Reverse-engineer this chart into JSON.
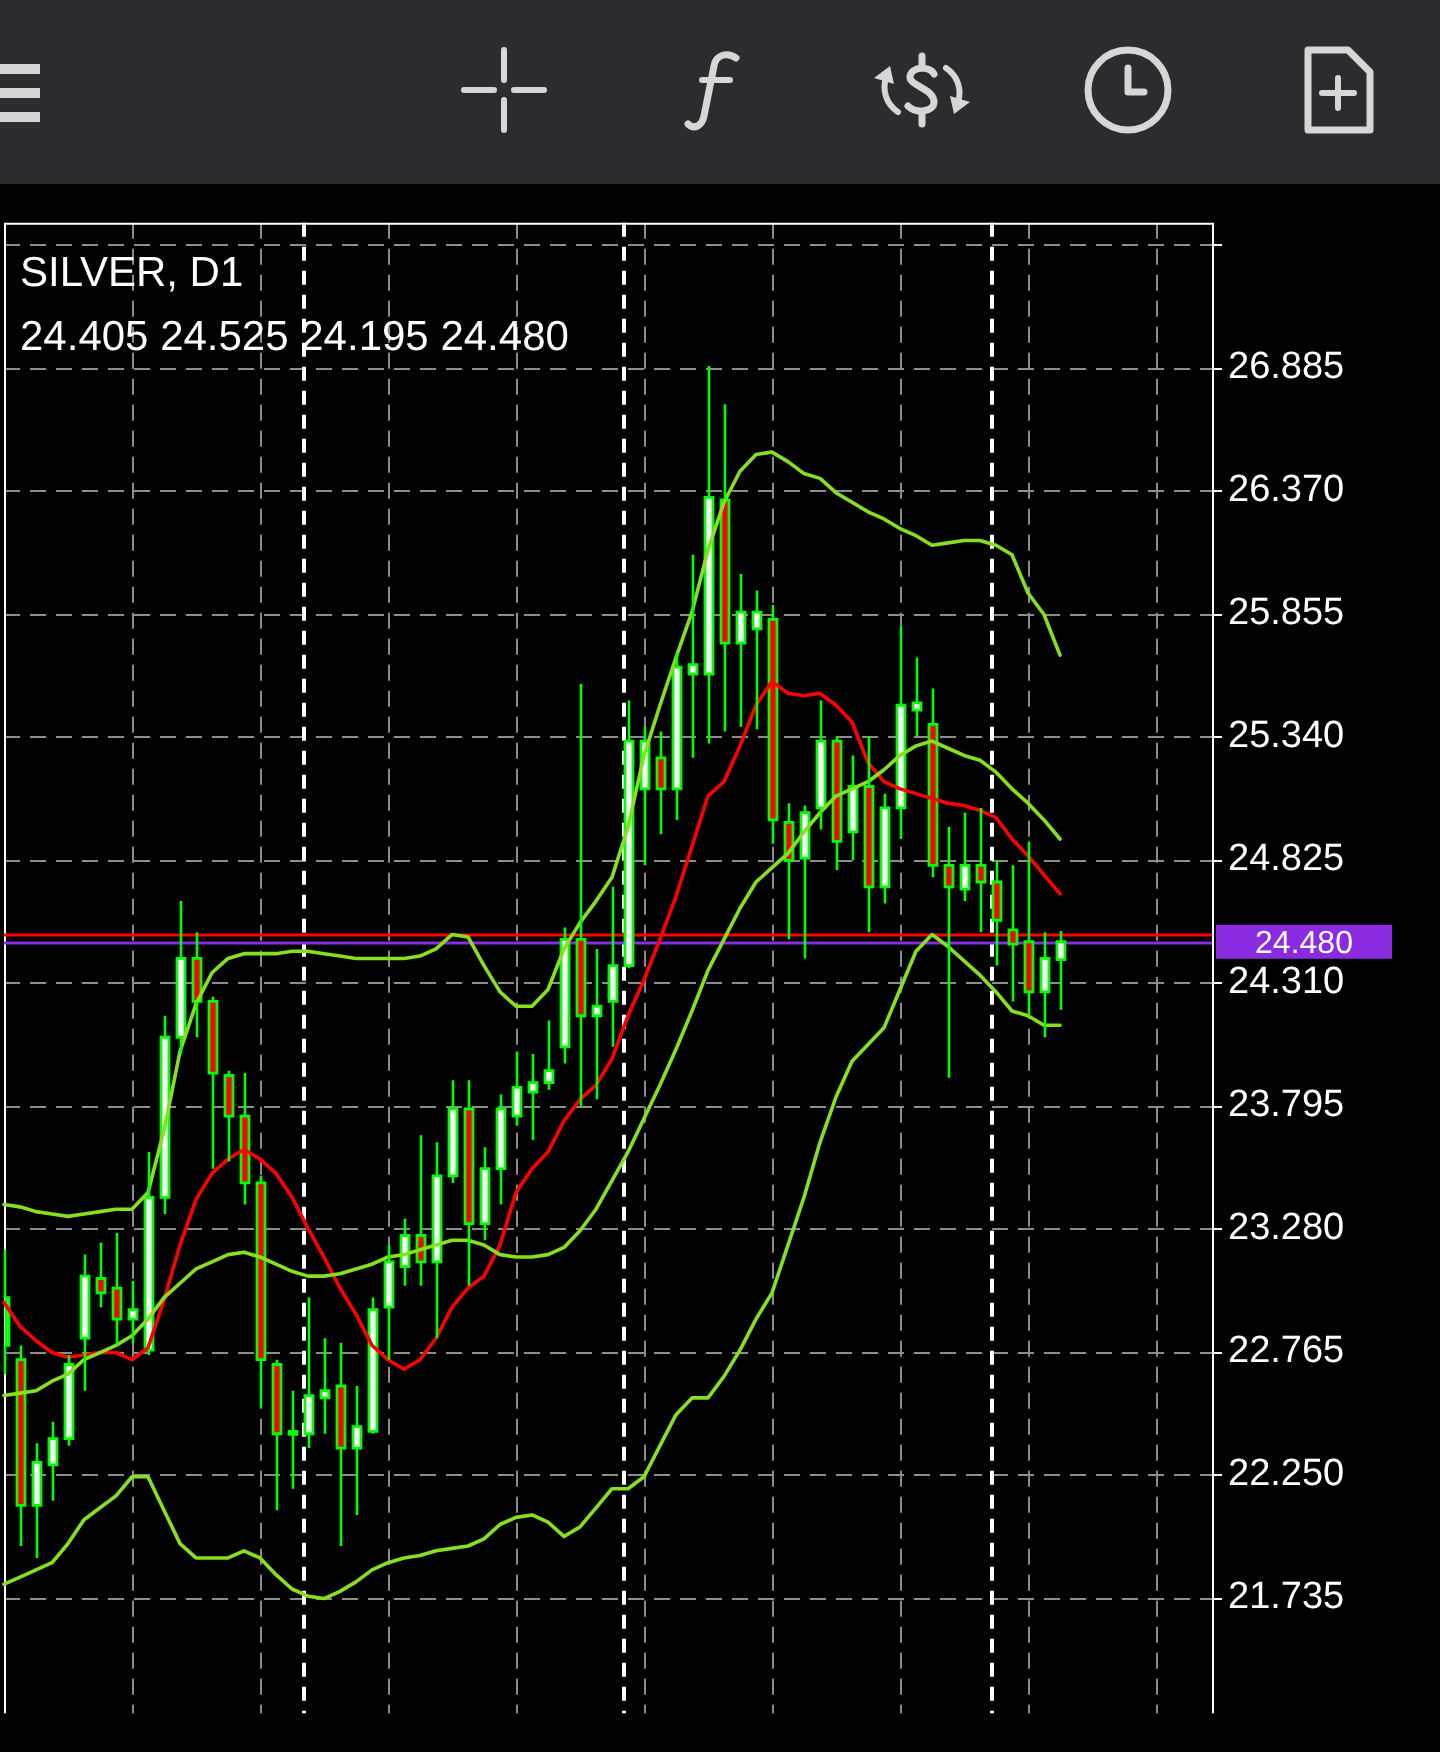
{
  "chart_data": {
    "type": "candlestick",
    "title": "SILVER, D1",
    "subtitle": "24.405 24.525 24.195 24.480",
    "categories": [
      null,
      null,
      null,
      null,
      null,
      null,
      null,
      null,
      null,
      null,
      null,
      null,
      null,
      null,
      null,
      null,
      null,
      null,
      null,
      null,
      null,
      null,
      null,
      null,
      null,
      null,
      null,
      null,
      null,
      null,
      null,
      null,
      null,
      null,
      null,
      null,
      null,
      null,
      null,
      null,
      null,
      null,
      null,
      null,
      null,
      null,
      null,
      null,
      null,
      null,
      null,
      null,
      null,
      null,
      null,
      null,
      null,
      null,
      null,
      null,
      null,
      null,
      null,
      null,
      null,
      null,
      null
    ],
    "ohlc": [
      [
        22.79,
        23.19,
        22.67,
        22.99
      ],
      [
        22.73,
        22.79,
        21.95,
        22.12
      ],
      [
        22.12,
        22.38,
        21.9,
        22.3
      ],
      [
        22.29,
        22.47,
        22.14,
        22.4
      ],
      [
        22.4,
        22.75,
        22.37,
        22.71
      ],
      [
        22.82,
        23.17,
        22.6,
        23.08
      ],
      [
        23.07,
        23.22,
        22.95,
        23.01
      ],
      [
        23.03,
        23.26,
        22.79,
        22.9
      ],
      [
        22.9,
        23.06,
        22.8,
        22.94
      ],
      [
        22.77,
        23.6,
        22.75,
        23.41
      ],
      [
        23.41,
        24.17,
        23.34,
        24.08
      ],
      [
        24.08,
        24.65,
        24.01,
        24.41
      ],
      [
        24.41,
        24.52,
        24.08,
        24.23
      ],
      [
        24.23,
        24.25,
        23.53,
        23.93
      ],
      [
        23.92,
        23.94,
        23.56,
        23.75
      ],
      [
        23.75,
        23.93,
        23.38,
        23.47
      ],
      [
        23.47,
        23.5,
        22.53,
        22.73
      ],
      [
        22.71,
        22.73,
        22.1,
        22.42
      ],
      [
        22.42,
        22.6,
        22.19,
        22.43
      ],
      [
        22.42,
        22.99,
        22.36,
        22.58
      ],
      [
        22.57,
        22.82,
        22.42,
        22.6
      ],
      [
        22.62,
        22.8,
        21.95,
        22.36
      ],
      [
        22.36,
        22.62,
        22.08,
        22.45
      ],
      [
        22.43,
        22.99,
        22.42,
        22.94
      ],
      [
        22.95,
        23.21,
        22.73,
        23.14
      ],
      [
        23.12,
        23.32,
        23.04,
        23.25
      ],
      [
        23.25,
        23.67,
        23.04,
        23.14
      ],
      [
        23.14,
        23.64,
        22.82,
        23.5
      ],
      [
        23.5,
        23.9,
        23.47,
        23.78
      ],
      [
        23.78,
        23.9,
        23.04,
        23.3
      ],
      [
        23.3,
        23.62,
        23.23,
        23.53
      ],
      [
        23.53,
        23.84,
        23.38,
        23.78
      ],
      [
        23.75,
        24.02,
        23.71,
        23.87
      ],
      [
        23.85,
        24.01,
        23.65,
        23.89
      ],
      [
        23.89,
        24.15,
        23.86,
        23.94
      ],
      [
        24.04,
        24.54,
        23.97,
        24.49
      ],
      [
        24.49,
        25.56,
        23.79,
        24.17
      ],
      [
        24.17,
        24.45,
        23.82,
        24.21
      ],
      [
        24.23,
        24.71,
        24.04,
        24.38
      ],
      [
        24.38,
        25.49,
        24.37,
        25.32
      ],
      [
        25.12,
        25.38,
        24.8,
        25.32
      ],
      [
        25.25,
        25.36,
        24.93,
        25.12
      ],
      [
        25.12,
        25.69,
        24.99,
        25.63
      ],
      [
        25.6,
        26.1,
        25.25,
        25.64
      ],
      [
        25.6,
        26.89,
        25.31,
        26.34
      ],
      [
        26.33,
        26.73,
        25.36,
        25.73
      ],
      [
        25.73,
        26.02,
        25.38,
        25.86
      ],
      [
        25.79,
        25.95,
        25.37,
        25.86
      ],
      [
        25.83,
        25.89,
        24.89,
        24.99
      ],
      [
        24.98,
        25.06,
        24.49,
        24.82
      ],
      [
        24.83,
        25.05,
        24.41,
        25.02
      ],
      [
        25.04,
        25.49,
        24.95,
        25.32
      ],
      [
        25.32,
        25.34,
        24.78,
        24.9
      ],
      [
        24.94,
        25.26,
        24.82,
        25.13
      ],
      [
        25.13,
        25.34,
        24.52,
        24.71
      ],
      [
        24.71,
        25.1,
        24.64,
        25.04
      ],
      [
        25.04,
        25.8,
        24.91,
        25.47
      ],
      [
        25.45,
        25.67,
        25.34,
        25.48
      ],
      [
        25.39,
        25.54,
        24.75,
        24.8
      ],
      [
        24.8,
        24.96,
        23.91,
        24.71
      ],
      [
        24.7,
        25.02,
        24.65,
        24.8
      ],
      [
        24.8,
        25.04,
        24.52,
        24.73
      ],
      [
        24.73,
        24.82,
        24.38,
        24.57
      ],
      [
        24.53,
        24.8,
        24.23,
        24.47
      ],
      [
        24.48,
        24.9,
        24.17,
        24.27
      ],
      [
        24.27,
        24.52,
        24.08,
        24.41
      ],
      [
        24.405,
        24.525,
        24.195,
        24.48
      ]
    ],
    "color": "#00ff00",
    "colors": [
      "#ffffff",
      "#ff0000",
      "#ffffff",
      "#ffffff",
      "#ffffff",
      "#ffffff",
      "#ff0000",
      "#ff0000",
      "#ffffff",
      "#ffffff",
      "#ffffff",
      "#ffffff",
      "#ff0000",
      "#ff0000",
      "#ff0000",
      "#ff0000",
      "#ff0000",
      "#ff0000",
      "#ffffff",
      "#ffffff",
      "#ffffff",
      "#ff0000",
      "#ffffff",
      "#ffffff",
      "#ffffff",
      "#ffffff",
      "#ff0000",
      "#ffffff",
      "#ffffff",
      "#ff0000",
      "#ffffff",
      "#ffffff",
      "#ffffff",
      "#ffffff",
      "#ffffff",
      "#ffffff",
      "#ff0000",
      "#ffffff",
      "#ffffff",
      "#ffffff",
      "#ffffff",
      "#ff0000",
      "#ffffff",
      "#ffffff",
      "#ffffff",
      "#ff0000",
      "#ffffff",
      "#ffffff",
      "#ff0000",
      "#ff0000",
      "#ffffff",
      "#ffffff",
      "#ff0000",
      "#ffffff",
      "#ff0000",
      "#ffffff",
      "#ffffff",
      "#ffffff",
      "#ff0000",
      "#ff0000",
      "#ffffff",
      "#ff0000",
      "#ff0000",
      "#ff0000",
      "#ff0000",
      "#ffffff",
      "#ffffff"
    ],
    "series": [
      {
        "type": "line",
        "color": "#86e01e",
        "values": [
          23.38,
          23.37,
          23.35,
          23.34,
          23.33,
          23.34,
          23.35,
          23.36,
          23.36,
          23.43,
          23.69,
          24.02,
          24.22,
          24.35,
          24.41,
          24.43,
          24.43,
          24.43,
          24.44,
          24.44,
          24.43,
          24.42,
          24.41,
          24.41,
          24.41,
          24.41,
          24.42,
          24.45,
          24.51,
          24.5,
          24.38,
          24.27,
          24.21,
          24.21,
          24.28,
          24.45,
          24.56,
          24.65,
          24.75,
          24.96,
          25.26,
          25.47,
          25.67,
          25.86,
          26.12,
          26.32,
          26.45,
          26.52,
          26.53,
          26.49,
          26.44,
          26.42,
          26.36,
          26.32,
          26.28,
          26.25,
          26.21,
          26.18,
          26.14,
          26.15,
          26.16,
          26.16,
          26.14,
          26.1,
          25.94,
          25.85,
          25.68
        ]
      },
      {
        "type": "line",
        "color": "#86e01e",
        "values": [
          22.58,
          22.59,
          22.6,
          22.64,
          22.67,
          22.73,
          22.76,
          22.79,
          22.83,
          22.9,
          22.99,
          23.05,
          23.11,
          23.14,
          23.17,
          23.18,
          23.16,
          23.13,
          23.1,
          23.08,
          23.08,
          23.09,
          23.11,
          23.13,
          23.16,
          23.17,
          23.19,
          23.21,
          23.23,
          23.23,
          23.21,
          23.17,
          23.16,
          23.16,
          23.17,
          23.2,
          23.27,
          23.36,
          23.48,
          23.6,
          23.74,
          23.88,
          24.03,
          24.19,
          24.36,
          24.49,
          24.62,
          24.73,
          24.79,
          24.85,
          24.94,
          25.02,
          25.09,
          25.12,
          25.15,
          25.2,
          25.26,
          25.3,
          25.32,
          25.29,
          25.26,
          25.24,
          25.19,
          25.12,
          25.06,
          24.99,
          24.91
        ]
      },
      {
        "type": "line",
        "color": "#86e01e",
        "values": [
          21.79,
          21.82,
          21.85,
          21.88,
          21.96,
          22.06,
          22.11,
          22.16,
          22.24,
          22.24,
          22.1,
          21.96,
          21.9,
          21.9,
          21.9,
          21.93,
          21.9,
          21.83,
          21.77,
          21.74,
          21.73,
          21.76,
          21.8,
          21.85,
          21.88,
          21.9,
          21.91,
          21.93,
          21.94,
          21.95,
          21.98,
          22.04,
          22.07,
          22.08,
          22.05,
          21.99,
          22.03,
          22.11,
          22.19,
          22.19,
          22.24,
          22.37,
          22.5,
          22.57,
          22.57,
          22.66,
          22.77,
          22.9,
          23.01,
          23.21,
          23.41,
          23.64,
          23.83,
          23.98,
          24.05,
          24.12,
          24.28,
          24.44,
          24.51,
          24.46,
          24.4,
          24.34,
          24.27,
          24.19,
          24.17,
          24.13,
          24.13
        ]
      },
      {
        "type": "line",
        "color": "#ff0000",
        "values": [
          22.97,
          22.87,
          22.81,
          22.76,
          22.74,
          22.75,
          22.76,
          22.76,
          22.73,
          22.78,
          22.98,
          23.21,
          23.4,
          23.51,
          23.57,
          23.61,
          23.57,
          23.51,
          23.41,
          23.28,
          23.16,
          23.03,
          22.92,
          22.79,
          22.73,
          22.69,
          22.73,
          22.82,
          22.95,
          23.03,
          23.08,
          23.21,
          23.43,
          23.53,
          23.6,
          23.73,
          23.82,
          23.88,
          23.99,
          24.17,
          24.32,
          24.49,
          24.67,
          24.88,
          25.09,
          25.15,
          25.3,
          25.47,
          25.57,
          25.52,
          25.51,
          25.52,
          25.47,
          25.4,
          25.23,
          25.15,
          25.12,
          25.1,
          25.08,
          25.06,
          25.05,
          25.03,
          25.0,
          24.91,
          24.84,
          24.76,
          24.68
        ]
      }
    ],
    "ylim": [
      21.25,
      27.49
    ],
    "yticks": [
      {
        "value": 27.4,
        "label": null
      },
      26.885,
      {
        "value": 26.37,
        "label": "26.370"
      },
      25.855,
      {
        "value": 25.34,
        "label": "25.340"
      },
      24.825,
      {
        "value": 24.31,
        "label": "24.310"
      },
      23.795,
      {
        "value": 23.28,
        "label": "23.280"
      },
      22.765,
      {
        "value": 22.25,
        "label": "22.250"
      },
      21.735
    ],
    "tick_labels": "y",
    "grid": true,
    "ref_lines": [
      {
        "axis": "y",
        "value": 24.51,
        "color": "#ff0000"
      },
      {
        "axis": "y",
        "value": 24.48,
        "label": "24.480",
        "color": "#8a2be2"
      }
    ]
  }
}
